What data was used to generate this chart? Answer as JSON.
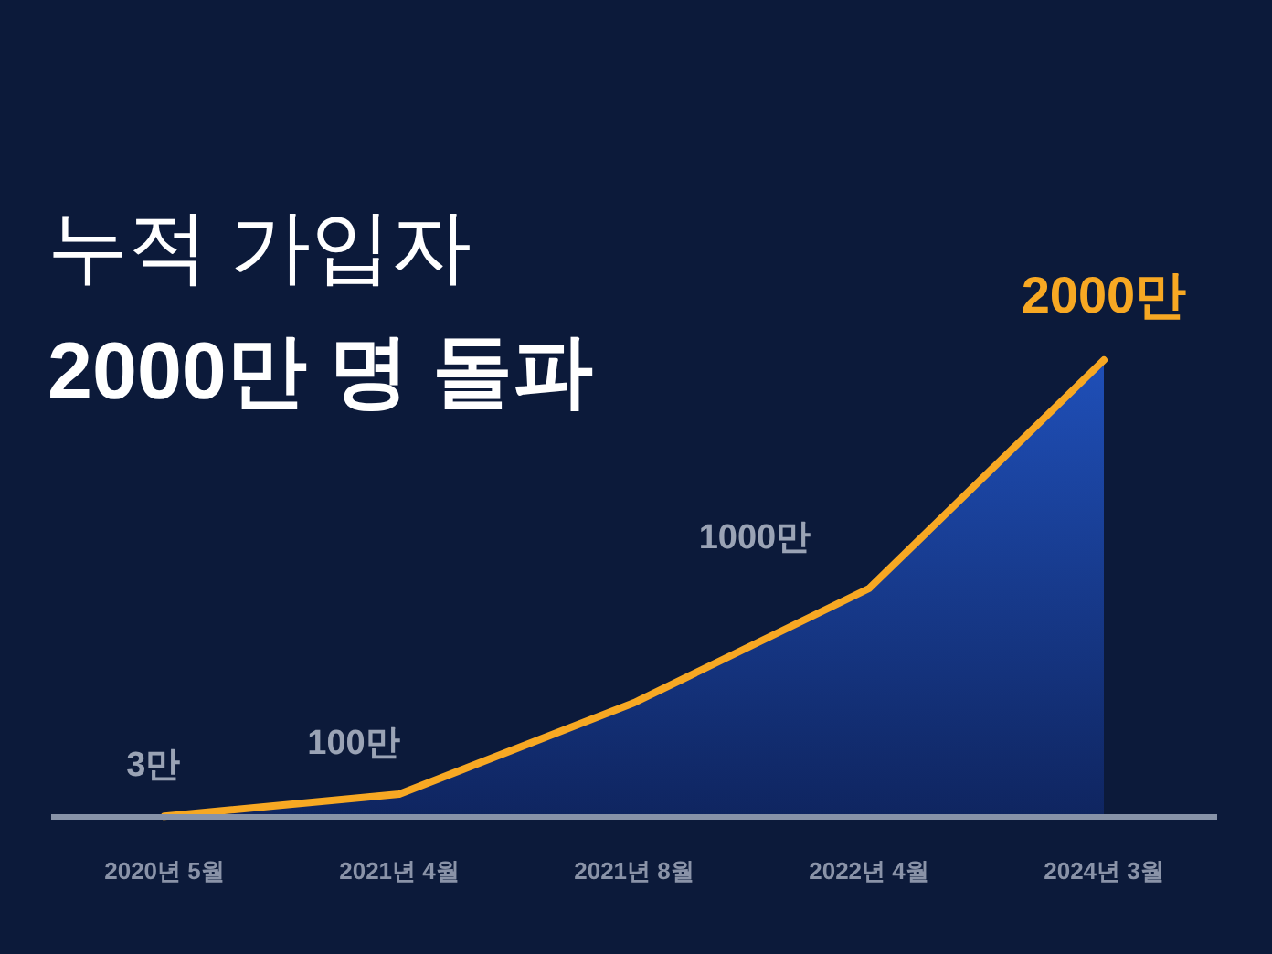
{
  "chart_data": {
    "type": "area",
    "title": "누적 가입자",
    "subtitle": "2000만 명 돌파",
    "categories": [
      "2020년 5월",
      "2021년 4월",
      "2021년 8월",
      "2022년 4월",
      "2024년 3월"
    ],
    "series": [
      {
        "color": "#f7a823",
        "values": [
          3,
          100,
          500,
          1000,
          2000
        ],
        "value_labels": [
          "3만",
          "100만",
          null,
          "1000만",
          "2000만"
        ]
      }
    ]
  }
}
